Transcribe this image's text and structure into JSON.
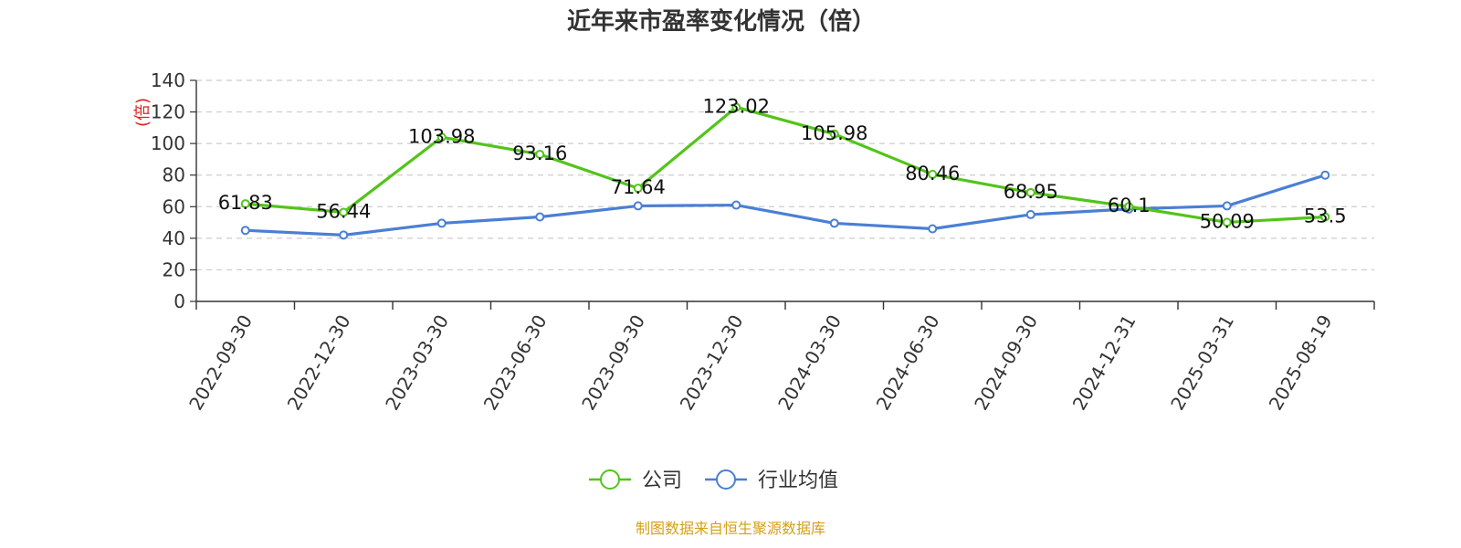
{
  "chart_data": {
    "type": "line",
    "title": "近年来市盈率变化情况（倍）",
    "ylabel": "(倍)",
    "xlabel": "",
    "categories": [
      "2022-09-30",
      "2022-12-30",
      "2023-03-30",
      "2023-06-30",
      "2023-09-30",
      "2023-12-30",
      "2024-03-30",
      "2024-06-30",
      "2024-09-30",
      "2024-12-31",
      "2025-03-31",
      "2025-08-19"
    ],
    "ylim": [
      0,
      140
    ],
    "yticks": [
      0,
      20,
      40,
      60,
      80,
      100,
      120,
      140
    ],
    "grid": true,
    "legend_position": "bottom-center",
    "series": [
      {
        "name": "公司",
        "color": "#52c41a",
        "values": [
          61.83,
          56.44,
          103.98,
          93.16,
          71.64,
          123.02,
          105.98,
          80.46,
          68.95,
          60.1,
          50.09,
          53.5
        ],
        "labels": [
          "61.83",
          "56.44",
          "103.98",
          "93.16",
          "71.64",
          "123.02",
          "105.98",
          "80.46",
          "68.95",
          "60.1",
          "50.09",
          "53.5"
        ]
      },
      {
        "name": "行业均值",
        "color": "#4a7fd4",
        "values": [
          45,
          42,
          49.5,
          53.5,
          60.5,
          61,
          49.5,
          46,
          55,
          58.5,
          60.5,
          80
        ]
      }
    ]
  },
  "ylabel_color": "#e02020",
  "source": {
    "text": "制图数据来自恒生聚源数据库",
    "color": "#d4a017"
  }
}
